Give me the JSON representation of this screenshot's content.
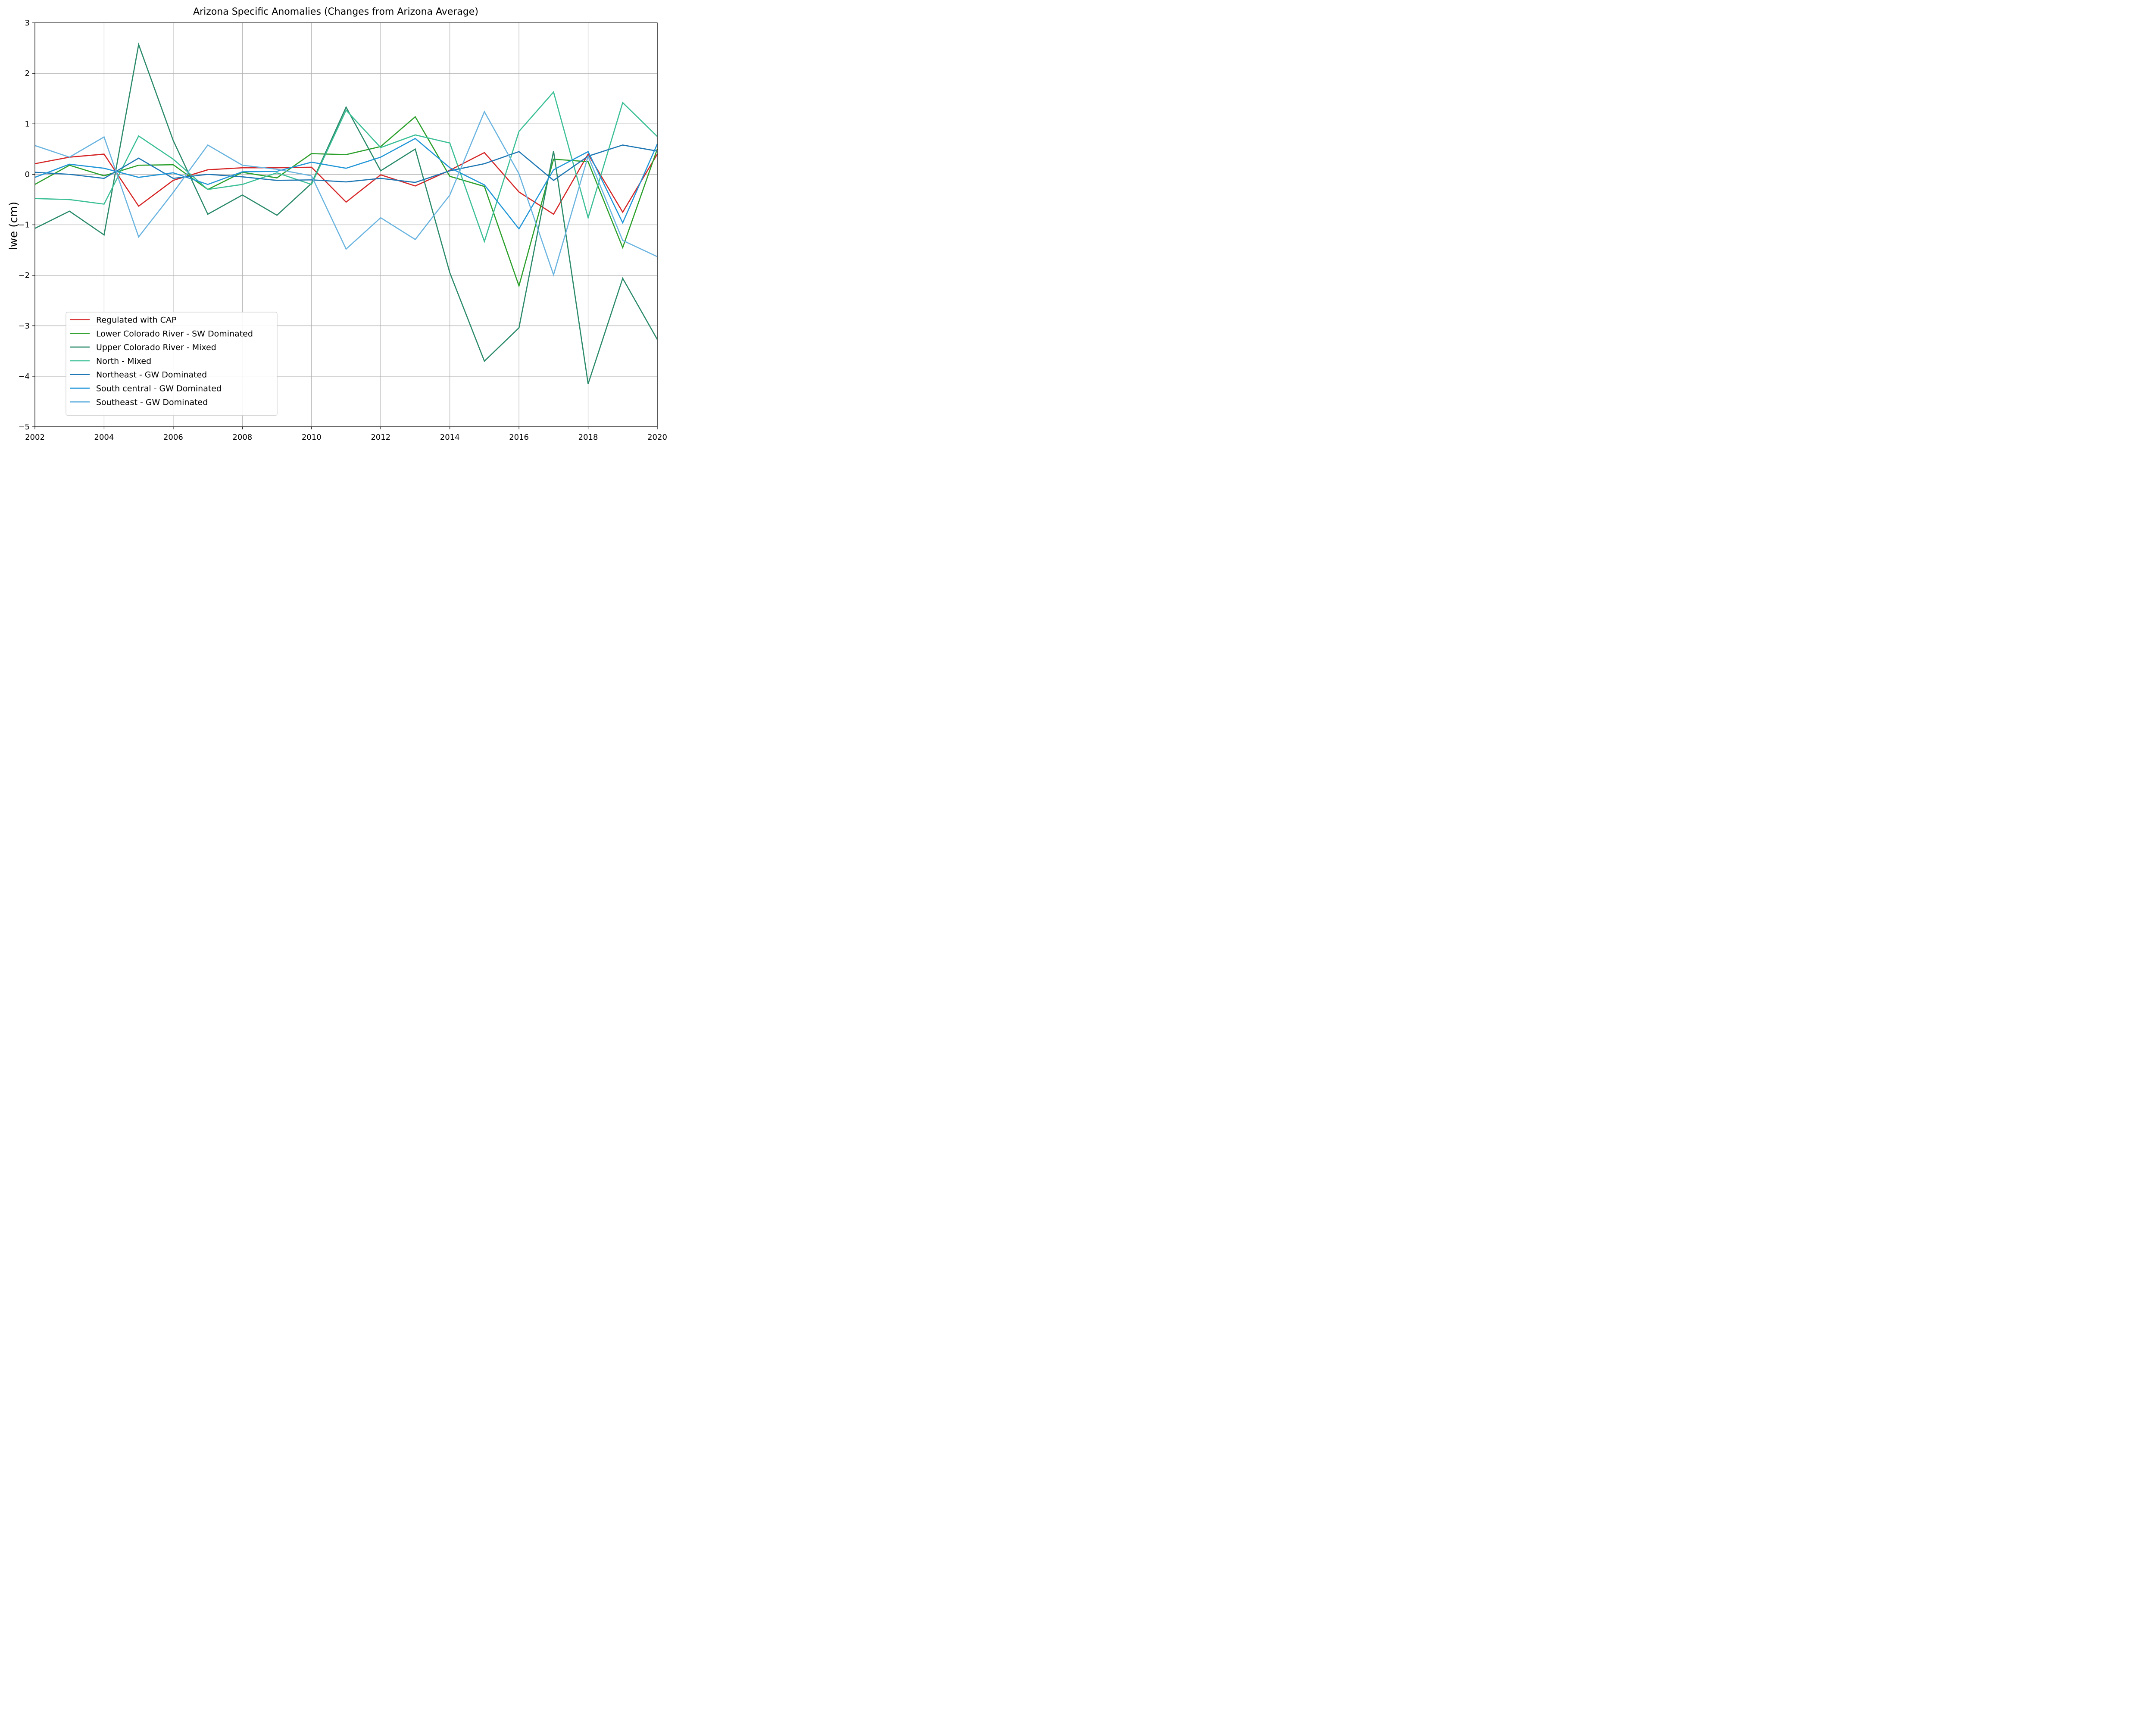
{
  "chart_data": {
    "type": "line",
    "title": "Arizona Specific Anomalies (Changes from Arizona Average)",
    "xlabel": "",
    "ylabel": "lwe (cm)",
    "xlim": [
      2002,
      2020
    ],
    "ylim": [
      -5,
      3
    ],
    "xticks": [
      "2002",
      "2004",
      "2006",
      "2008",
      "2010",
      "2012",
      "2014",
      "2016",
      "2018",
      "2020"
    ],
    "yticks": [
      "3",
      "2",
      "1",
      "0",
      "−1",
      "−2",
      "−3",
      "−4",
      "−5"
    ],
    "grid": true,
    "legend_position": "lower-left",
    "x": [
      2002,
      2003,
      2004,
      2005,
      2006,
      2007,
      2008,
      2009,
      2010,
      2011,
      2012,
      2013,
      2014,
      2015,
      2016,
      2017,
      2018,
      2019,
      2020
    ],
    "series": [
      {
        "name": "Regulated with CAP",
        "color": "#d62728",
        "values": [
          0.21,
          0.34,
          0.4,
          -0.63,
          -0.12,
          0.09,
          0.13,
          0.13,
          0.14,
          -0.55,
          -0.01,
          -0.23,
          0.08,
          0.43,
          -0.35,
          -0.79,
          0.4,
          -0.75,
          0.4
        ]
      },
      {
        "name": "Lower Colorado River - SW Dominated",
        "color": "#2ca02c",
        "values": [
          -0.2,
          0.18,
          -0.03,
          0.18,
          0.19,
          -0.3,
          0.04,
          -0.07,
          0.41,
          0.39,
          0.55,
          1.14,
          -0.04,
          -0.24,
          -2.21,
          0.3,
          0.25,
          -1.45,
          0.5
        ]
      },
      {
        "name": "Upper Colorado River - Mixed",
        "color": "#2a8a6a",
        "values": [
          -1.07,
          -0.73,
          -1.2,
          2.57,
          0.67,
          -0.79,
          -0.41,
          -0.81,
          -0.18,
          1.33,
          0.07,
          0.5,
          -1.95,
          -3.7,
          -3.04,
          0.46,
          -4.15,
          -2.06,
          -3.27
        ]
      },
      {
        "name": "North - Mixed",
        "color": "#3bbf96",
        "values": [
          -0.48,
          -0.5,
          -0.59,
          0.76,
          0.3,
          -0.3,
          -0.2,
          0.03,
          -0.2,
          1.27,
          0.53,
          0.78,
          0.62,
          -1.33,
          0.85,
          1.63,
          -0.86,
          1.42,
          0.75
        ]
      },
      {
        "name": "Northeast - GW Dominated",
        "color": "#1f77b4",
        "values": [
          0.04,
          0.0,
          -0.08,
          0.32,
          -0.08,
          0.0,
          -0.05,
          -0.12,
          -0.11,
          -0.15,
          -0.08,
          -0.16,
          0.07,
          0.21,
          0.45,
          -0.12,
          0.36,
          0.58,
          0.46
        ]
      },
      {
        "name": "South central - GW Dominated",
        "color": "#2196d8",
        "values": [
          -0.06,
          0.2,
          0.12,
          -0.06,
          0.03,
          -0.2,
          0.05,
          0.06,
          0.24,
          0.12,
          0.34,
          0.71,
          0.13,
          -0.21,
          -1.08,
          0.09,
          0.45,
          -0.96,
          0.6
        ]
      },
      {
        "name": "Southeast - GW Dominated",
        "color": "#6ab4e0",
        "values": [
          0.57,
          0.34,
          0.74,
          -1.24,
          -0.36,
          0.58,
          0.18,
          0.1,
          -0.03,
          -1.48,
          -0.86,
          -1.29,
          -0.41,
          1.24,
          0.01,
          -1.99,
          0.36,
          -1.31,
          -1.63
        ]
      }
    ]
  }
}
